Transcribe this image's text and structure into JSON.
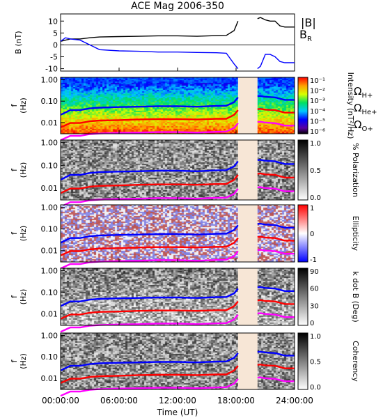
{
  "chart_data": {
    "title": "ACE Mag 2006-350",
    "xlabel": "Time (UT)",
    "x_ticks": [
      "00:00:00",
      "06:00:00",
      "12:00:00",
      "18:00:00",
      "24:00:00"
    ],
    "x_range_hours": [
      0,
      24
    ],
    "data_gap_hours": [
      18.2,
      20.2
    ],
    "colors": {
      "total": "#000000",
      "radial": "#0000ff",
      "h": "#0000ff",
      "he": "#ff0000",
      "o": "#ff00ff",
      "gap": "#f7e6d6"
    },
    "panels": [
      {
        "type": "line",
        "ylabel": "B (nT)",
        "ylim": [
          -11,
          13
        ],
        "y_ticks": [
          "10",
          "5",
          "0",
          "-5",
          "-10"
        ],
        "legend": [
          "|B|",
          "B_R"
        ],
        "series": [
          {
            "name": "|B|",
            "x": [
              0,
              1,
              2,
              3,
              4,
              6,
              8,
              10,
              12,
              14,
              16,
              17,
              17.8,
              18.2,
              20.2,
              20.5,
              21,
              21.5,
              22,
              22.5,
              23,
              24
            ],
            "values": [
              1.5,
              2.5,
              2.5,
              3,
              3.3,
              3.5,
              3.6,
              3.8,
              3.8,
              3.6,
              3.9,
              4,
              6,
              10,
              11,
              11.5,
              10.5,
              10,
              10,
              8,
              7.5,
              7.5
            ]
          },
          {
            "name": "B_R",
            "x": [
              0,
              0.5,
              1,
              2,
              3,
              4,
              6,
              8,
              10,
              12,
              14,
              16,
              17,
              17.8,
              18.2,
              20.2,
              20.5,
              21,
              21.5,
              22,
              22.5,
              23,
              24
            ],
            "values": [
              1.5,
              3,
              2.5,
              2,
              0,
              -2,
              -2.5,
              -2.7,
              -3,
              -3,
              -3.2,
              -3.3,
              -3.5,
              -8,
              -10,
              -10,
              -9,
              -4,
              -4,
              -5,
              -7,
              -7.5,
              -7.5
            ]
          }
        ]
      },
      {
        "type": "heatmap",
        "ylabel": "f (Hz)",
        "y_ticks": [
          "1.00",
          "0.10",
          "0.01"
        ],
        "colorbar_label": "Intensity (nT²/Hz)",
        "colorbar_ticks": [
          "10⁻¹",
          "10⁻²",
          "10⁻³",
          "10⁻⁴",
          "10⁻⁵",
          "10⁻⁶"
        ],
        "legend": [
          "Ω_H+",
          "Ω_He+",
          "Ω_O+"
        ]
      },
      {
        "type": "heatmap",
        "ylabel": "f (Hz)",
        "y_ticks": [
          "1.00",
          "0.10",
          "0.01"
        ],
        "colorbar_label": "% Polarization",
        "colorbar_ticks": [
          "1.0",
          "0.5",
          "0.0"
        ]
      },
      {
        "type": "heatmap",
        "ylabel": "f (Hz)",
        "y_ticks": [
          "1.00",
          "0.10",
          "0.01"
        ],
        "colorbar_label": "Ellipticity",
        "colorbar_ticks": [
          "1",
          "0",
          "-1"
        ]
      },
      {
        "type": "heatmap",
        "ylabel": "f (Hz)",
        "y_ticks": [
          "1.00",
          "0.10",
          "0.01"
        ],
        "colorbar_label": "k dot B (Deg)",
        "colorbar_ticks": [
          "90",
          "60",
          "30",
          "0"
        ]
      },
      {
        "type": "heatmap",
        "ylabel": "f (Hz)",
        "y_ticks": [
          "1.00",
          "0.10",
          "0.01"
        ],
        "colorbar_label": "Coherency",
        "colorbar_ticks": [
          "1.0",
          "0.5",
          "0.0"
        ]
      }
    ],
    "gyrofrequency_x": [
      0,
      1,
      2,
      3,
      4,
      6,
      8,
      10,
      12,
      14,
      16,
      17,
      17.8,
      18.2,
      20.2,
      20.5,
      21,
      22,
      23,
      24
    ],
    "gyrofrequency_Hz": {
      "H+": [
        0.023,
        0.038,
        0.038,
        0.046,
        0.05,
        0.053,
        0.055,
        0.058,
        0.058,
        0.055,
        0.06,
        0.061,
        0.09,
        0.15,
        0.17,
        0.175,
        0.16,
        0.15,
        0.115,
        0.115
      ],
      "He+": [
        0.006,
        0.0095,
        0.0095,
        0.0115,
        0.0125,
        0.013,
        0.014,
        0.0145,
        0.0145,
        0.014,
        0.015,
        0.015,
        0.023,
        0.038,
        0.042,
        0.044,
        0.04,
        0.038,
        0.029,
        0.029
      ],
      "O+": [
        0.0015,
        0.0024,
        0.0024,
        0.0029,
        0.0031,
        0.0033,
        0.0034,
        0.0036,
        0.0036,
        0.0034,
        0.0037,
        0.0038,
        0.0056,
        0.0094,
        0.0106,
        0.011,
        0.01,
        0.0094,
        0.0072,
        0.0072
      ]
    }
  }
}
